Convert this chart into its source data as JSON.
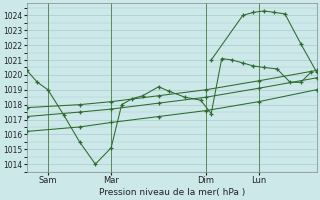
{
  "background_color": "#cce8e8",
  "grid_color": "#a8cccc",
  "line_color": "#2d6a2d",
  "xlabel": "Pression niveau de la mer( hPa )",
  "ylim": [
    1013.5,
    1024.8
  ],
  "yticks": [
    1014,
    1015,
    1016,
    1017,
    1018,
    1019,
    1020,
    1021,
    1022,
    1023,
    1024
  ],
  "xtick_labels": [
    "Sam",
    "Mar",
    "Dim",
    "Lun"
  ],
  "xtick_positions": [
    8,
    32,
    68,
    88
  ],
  "xlim": [
    0,
    110
  ],
  "series": [
    {
      "x": [
        0,
        4,
        8,
        14,
        20,
        26,
        32,
        36,
        40,
        44,
        50,
        54,
        60,
        66,
        70,
        74,
        78,
        82,
        86,
        90,
        95,
        100,
        104,
        108
      ],
      "y": [
        1020.3,
        1019.5,
        1019.0,
        1017.3,
        1015.5,
        1014.0,
        1015.1,
        1018.0,
        1018.4,
        1018.6,
        1019.2,
        1018.9,
        1018.5,
        1018.3,
        1017.4,
        1021.1,
        1021.0,
        1020.8,
        1020.6,
        1020.5,
        1020.4,
        1019.5,
        1019.5,
        1020.2
      ]
    },
    {
      "x": [
        0,
        20,
        32,
        50,
        68,
        88,
        110
      ],
      "y": [
        1017.8,
        1018.0,
        1018.2,
        1018.6,
        1019.0,
        1019.6,
        1020.3
      ]
    },
    {
      "x": [
        0,
        20,
        32,
        50,
        68,
        88,
        110
      ],
      "y": [
        1017.2,
        1017.5,
        1017.7,
        1018.1,
        1018.5,
        1019.1,
        1019.8
      ]
    },
    {
      "x": [
        0,
        20,
        32,
        50,
        68,
        88,
        110
      ],
      "y": [
        1016.2,
        1016.5,
        1016.8,
        1017.2,
        1017.6,
        1018.2,
        1019.0
      ]
    },
    {
      "x": [
        70,
        82,
        86,
        90,
        94,
        98,
        104,
        110
      ],
      "y": [
        1021.0,
        1024.0,
        1024.2,
        1024.3,
        1024.2,
        1024.1,
        1022.1,
        1020.2
      ]
    }
  ],
  "vlines_x": [
    8,
    32,
    68,
    88
  ],
  "figsize": [
    3.2,
    2.0
  ],
  "dpi": 100
}
